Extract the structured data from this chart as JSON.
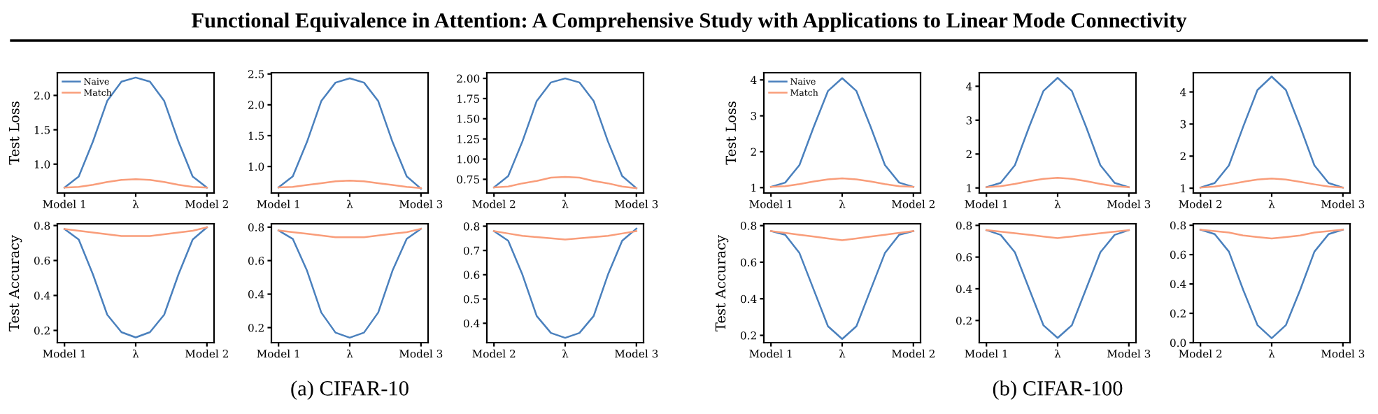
{
  "chart_data": [
    {
      "type": "line",
      "title": "Functional Equivalence in Attention: A Comprehensive Study with Applications to Linear Mode Connectivity",
      "ylabel": "Test Loss",
      "legend": "top left",
      "categories": [
        "Model 1",
        null,
        null,
        null,
        null,
        "λ",
        null,
        null,
        null,
        null,
        "Model 2"
      ],
      "ylim": [
        0.58,
        2.33
      ],
      "yticks": [
        {
          "value": 1.0,
          "label": "1.0"
        },
        {
          "value": 1.5,
          "label": "1.5"
        },
        {
          "value": 2.0,
          "label": "2.0"
        }
      ],
      "series": [
        {
          "name": "Naive",
          "color": "#4a80bd",
          "values": [
            0.66,
            0.82,
            1.33,
            1.92,
            2.2,
            2.26,
            2.2,
            1.92,
            1.33,
            0.82,
            0.66
          ]
        },
        {
          "name": "Match",
          "color": "#f99d7a",
          "values": [
            0.66,
            0.67,
            0.7,
            0.74,
            0.77,
            0.78,
            0.77,
            0.74,
            0.7,
            0.67,
            0.66
          ]
        }
      ]
    },
    {
      "type": "line",
      "categories": [
        "Model 1",
        null,
        null,
        null,
        null,
        "λ",
        null,
        null,
        null,
        null,
        "Model 3"
      ],
      "ylim": [
        0.57,
        2.52
      ],
      "yticks": [
        {
          "value": 1.0,
          "label": "1.0"
        },
        {
          "value": 1.5,
          "label": "1.5"
        },
        {
          "value": 2.0,
          "label": "2.0"
        },
        {
          "value": 2.5,
          "label": "2.5"
        }
      ],
      "series": [
        {
          "color": "#4a80bd",
          "values": [
            0.66,
            0.84,
            1.4,
            2.06,
            2.36,
            2.43,
            2.36,
            2.06,
            1.4,
            0.84,
            0.64
          ]
        },
        {
          "color": "#f99d7a",
          "values": [
            0.66,
            0.67,
            0.7,
            0.73,
            0.76,
            0.77,
            0.76,
            0.73,
            0.7,
            0.67,
            0.65
          ]
        }
      ]
    },
    {
      "type": "line",
      "categories": [
        "Model 2",
        null,
        null,
        null,
        null,
        "λ",
        null,
        null,
        null,
        null,
        "Model 3"
      ],
      "ylim": [
        0.58,
        2.07
      ],
      "yticks": [
        0.75,
        {
          "value": 1.0,
          "label": "1.00"
        },
        1.25,
        {
          "value": 1.5,
          "label": "1.50"
        },
        1.75,
        {
          "value": 2.0,
          "label": "2.00"
        }
      ],
      "series": [
        {
          "color": "#4a80bd",
          "values": [
            0.65,
            0.79,
            1.22,
            1.72,
            1.95,
            2.0,
            1.95,
            1.72,
            1.22,
            0.79,
            0.64
          ]
        },
        {
          "color": "#f99d7a",
          "values": [
            0.65,
            0.66,
            0.7,
            0.73,
            0.77,
            0.78,
            0.77,
            0.73,
            0.7,
            0.66,
            0.64
          ]
        }
      ]
    },
    {
      "type": "line",
      "ylabel": "Test Loss",
      "legend": "top left",
      "categories": [
        "Model 1",
        null,
        null,
        null,
        null,
        "λ",
        null,
        null,
        null,
        null,
        "Model 2"
      ],
      "ylim": [
        0.85,
        4.2
      ],
      "yticks": [
        1,
        2,
        3,
        4
      ],
      "series": [
        {
          "name": "Naive",
          "color": "#4a80bd",
          "values": [
            1.02,
            1.14,
            1.63,
            2.69,
            3.69,
            4.05,
            3.69,
            2.69,
            1.63,
            1.14,
            1.02
          ]
        },
        {
          "name": "Match",
          "color": "#f99d7a",
          "values": [
            1.02,
            1.04,
            1.1,
            1.17,
            1.23,
            1.26,
            1.23,
            1.17,
            1.1,
            1.04,
            1.02
          ]
        }
      ]
    },
    {
      "type": "line",
      "categories": [
        "Model 1",
        null,
        null,
        null,
        null,
        "λ",
        null,
        null,
        null,
        null,
        "Model 3"
      ],
      "ylim": [
        0.85,
        4.4
      ],
      "yticks": [
        1,
        2,
        3,
        4
      ],
      "series": [
        {
          "color": "#4a80bd",
          "values": [
            1.02,
            1.15,
            1.67,
            2.8,
            3.86,
            4.25,
            3.86,
            2.8,
            1.67,
            1.15,
            1.02
          ]
        },
        {
          "color": "#f99d7a",
          "values": [
            1.02,
            1.05,
            1.12,
            1.2,
            1.27,
            1.3,
            1.27,
            1.2,
            1.12,
            1.05,
            1.02
          ]
        }
      ]
    },
    {
      "type": "line",
      "categories": [
        "Model 2",
        null,
        null,
        null,
        null,
        "λ",
        null,
        null,
        null,
        null,
        "Model 3"
      ],
      "ylim": [
        0.85,
        4.6
      ],
      "yticks": [
        1,
        2,
        3,
        4
      ],
      "series": [
        {
          "color": "#4a80bd",
          "values": [
            1.02,
            1.16,
            1.71,
            2.92,
            4.06,
            4.48,
            4.06,
            2.92,
            1.71,
            1.16,
            1.02
          ]
        },
        {
          "color": "#f99d7a",
          "values": [
            1.02,
            1.05,
            1.12,
            1.2,
            1.27,
            1.3,
            1.27,
            1.2,
            1.12,
            1.05,
            1.02
          ]
        }
      ]
    },
    {
      "type": "line",
      "ylabel": "Test Accuracy",
      "categories": [
        "Model 1",
        null,
        null,
        null,
        null,
        "λ",
        null,
        null,
        null,
        null,
        "Model 2"
      ],
      "ylim": [
        0.13,
        0.81
      ],
      "yticks": [
        0.2,
        0.4,
        0.6,
        0.8
      ],
      "series": [
        {
          "color": "#4a80bd",
          "values": [
            0.78,
            0.72,
            0.52,
            0.29,
            0.19,
            0.16,
            0.19,
            0.29,
            0.52,
            0.72,
            0.79
          ]
        },
        {
          "color": "#f99d7a",
          "values": [
            0.78,
            0.77,
            0.76,
            0.75,
            0.74,
            0.74,
            0.74,
            0.75,
            0.76,
            0.77,
            0.79
          ]
        }
      ]
    },
    {
      "type": "line",
      "annotations": [
        "(a) CIFAR-10"
      ],
      "categories": [
        "Model 1",
        null,
        null,
        null,
        null,
        "λ",
        null,
        null,
        null,
        null,
        "Model 3"
      ],
      "ylim": [
        0.11,
        0.82
      ],
      "yticks": [
        0.2,
        0.4,
        0.6,
        0.8
      ],
      "series": [
        {
          "color": "#4a80bd",
          "values": [
            0.78,
            0.73,
            0.54,
            0.29,
            0.17,
            0.14,
            0.17,
            0.29,
            0.54,
            0.73,
            0.79
          ]
        },
        {
          "color": "#f99d7a",
          "values": [
            0.78,
            0.77,
            0.76,
            0.75,
            0.74,
            0.74,
            0.74,
            0.75,
            0.76,
            0.77,
            0.79
          ]
        }
      ]
    },
    {
      "type": "line",
      "categories": [
        "Model 2",
        null,
        null,
        null,
        null,
        "λ",
        null,
        null,
        null,
        null,
        "Model 3"
      ],
      "ylim": [
        0.32,
        0.81
      ],
      "yticks": [
        0.4,
        0.5,
        0.6,
        0.7,
        0.8
      ],
      "series": [
        {
          "color": "#4a80bd",
          "values": [
            0.78,
            0.74,
            0.6,
            0.43,
            0.36,
            0.34,
            0.36,
            0.43,
            0.6,
            0.74,
            0.79
          ]
        },
        {
          "color": "#f99d7a",
          "values": [
            0.78,
            0.77,
            0.76,
            0.755,
            0.75,
            0.745,
            0.75,
            0.755,
            0.76,
            0.77,
            0.78
          ]
        }
      ]
    },
    {
      "type": "line",
      "ylabel": "Test Accuracy",
      "categories": [
        "Model 1",
        null,
        null,
        null,
        null,
        "λ",
        null,
        null,
        null,
        null,
        "Model 2"
      ],
      "ylim": [
        0.16,
        0.81
      ],
      "yticks": [
        0.2,
        0.4,
        0.6,
        0.8
      ],
      "series": [
        {
          "color": "#4a80bd",
          "values": [
            0.77,
            0.75,
            0.65,
            0.45,
            0.25,
            0.18,
            0.25,
            0.45,
            0.65,
            0.75,
            0.77
          ]
        },
        {
          "color": "#f99d7a",
          "values": [
            0.77,
            0.76,
            0.75,
            0.74,
            0.73,
            0.72,
            0.73,
            0.74,
            0.75,
            0.76,
            0.77
          ]
        }
      ]
    },
    {
      "type": "line",
      "annotations": [
        "(b) CIFAR-100"
      ],
      "categories": [
        "Model 1",
        null,
        null,
        null,
        null,
        "λ",
        null,
        null,
        null,
        null,
        "Model 3"
      ],
      "ylim": [
        0.06,
        0.81
      ],
      "yticks": [
        0.2,
        0.4,
        0.6,
        0.8
      ],
      "series": [
        {
          "color": "#4a80bd",
          "values": [
            0.77,
            0.74,
            0.63,
            0.4,
            0.17,
            0.09,
            0.17,
            0.4,
            0.63,
            0.74,
            0.77
          ]
        },
        {
          "color": "#f99d7a",
          "values": [
            0.77,
            0.76,
            0.75,
            0.74,
            0.73,
            0.72,
            0.73,
            0.74,
            0.75,
            0.76,
            0.77
          ]
        }
      ]
    },
    {
      "type": "line",
      "categories": [
        "Model 2",
        null,
        null,
        null,
        null,
        "λ",
        null,
        null,
        null,
        null,
        "Model 3"
      ],
      "ylim": [
        0.0,
        0.81
      ],
      "yticks": [
        {
          "value": 0.0,
          "label": "0.0"
        },
        0.2,
        0.4,
        0.6,
        0.8
      ],
      "series": [
        {
          "color": "#4a80bd",
          "values": [
            0.77,
            0.74,
            0.62,
            0.36,
            0.12,
            0.03,
            0.12,
            0.36,
            0.62,
            0.74,
            0.77
          ]
        },
        {
          "color": "#f99d7a",
          "values": [
            0.77,
            0.76,
            0.75,
            0.73,
            0.72,
            0.71,
            0.72,
            0.73,
            0.75,
            0.76,
            0.77
          ]
        }
      ]
    }
  ]
}
